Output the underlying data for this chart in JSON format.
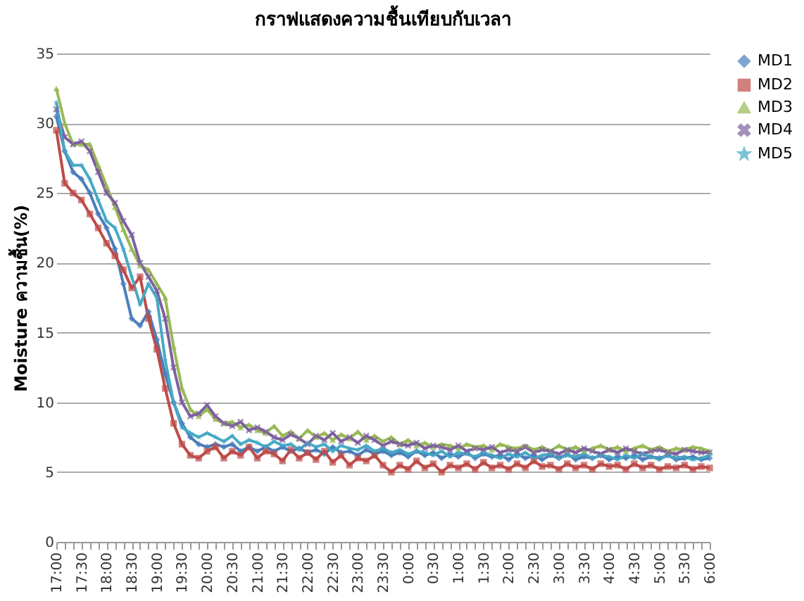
{
  "chart_data": {
    "type": "line",
    "title": "กราฟแสดงความชื้นเทียบกับเวลา",
    "ylabel": "Moisture ความชื้น(%)",
    "categories": [
      "17:00",
      null,
      null,
      "17:30",
      null,
      null,
      "18:00",
      null,
      null,
      "18:30",
      null,
      null,
      "19:00",
      null,
      null,
      "19:30",
      null,
      null,
      "20:00",
      null,
      null,
      "20:30",
      null,
      null,
      "21:00",
      null,
      null,
      "21:30",
      null,
      null,
      "22:00",
      null,
      null,
      "22:30",
      null,
      null,
      "23:00",
      null,
      null,
      "23:30",
      null,
      null,
      "0:00",
      null,
      null,
      "0:30",
      null,
      null,
      "1:00",
      null,
      null,
      "1:30",
      null,
      null,
      "2:00",
      null,
      null,
      "2:30",
      null,
      null,
      "3:00",
      null,
      null,
      "3:30",
      null,
      null,
      "4:00",
      null,
      null,
      "4:30",
      null,
      null,
      "5:00",
      null,
      null,
      "5:30",
      null,
      null,
      "6:00"
    ],
    "series": [
      {
        "name": "MD1",
        "color": "#4a7ebb",
        "marker": "diamond",
        "values": [
          30.5,
          28,
          26.5,
          26,
          25,
          23.5,
          22.5,
          21,
          18.5,
          16,
          15.5,
          16.5,
          14.5,
          12,
          10,
          8.5,
          7.5,
          7,
          6.8,
          7,
          6.8,
          7,
          6.5,
          6.8,
          6.5,
          6.8,
          6.5,
          6.8,
          6.5,
          6.7,
          6.4,
          6.6,
          6.3,
          6.8,
          6.4,
          6.5,
          6.2,
          6.6,
          6.3,
          6.5,
          6.2,
          6.4,
          6.1,
          6.5,
          6.2,
          6.4,
          6,
          6.3,
          6.1,
          6.4,
          6,
          6.3,
          6.1,
          6.2,
          5.9,
          6.3,
          6,
          6.2,
          5.9,
          6.2,
          6,
          6.3,
          5.9,
          6.1,
          6,
          6.2,
          5.9,
          6.1,
          6,
          6.2,
          5.9,
          6.1,
          6,
          6.2,
          5.9,
          6,
          6.1,
          5.9,
          6
        ]
      },
      {
        "name": "MD2",
        "color": "#be4b48",
        "marker": "square",
        "values": [
          29.5,
          25.7,
          25,
          24.5,
          23.5,
          22.5,
          21.4,
          20.5,
          19.5,
          18.2,
          19,
          16,
          13.8,
          11,
          8.5,
          7,
          6.2,
          6,
          6.5,
          6.8,
          6,
          6.5,
          6.2,
          6.8,
          6,
          6.5,
          6.3,
          5.8,
          6.6,
          6,
          6.4,
          5.9,
          6.5,
          5.7,
          6.2,
          5.5,
          6,
          5.8,
          6.2,
          5.5,
          5,
          5.5,
          5.2,
          5.8,
          5.3,
          5.6,
          5,
          5.5,
          5.3,
          5.6,
          5.2,
          5.7,
          5.3,
          5.5,
          5.2,
          5.6,
          5.3,
          5.8,
          5.4,
          5.5,
          5.2,
          5.6,
          5.3,
          5.5,
          5.2,
          5.6,
          5.4,
          5.5,
          5.2,
          5.6,
          5.3,
          5.5,
          5.2,
          5.4,
          5.3,
          5.5,
          5.2,
          5.4,
          5.3
        ]
      },
      {
        "name": "MD3",
        "color": "#98b954",
        "marker": "triangle",
        "values": [
          32.5,
          30,
          28.5,
          28.5,
          28.5,
          27,
          25.5,
          24,
          22.4,
          21,
          19.8,
          19.5,
          18.5,
          17.5,
          14,
          11,
          9.5,
          9,
          9.5,
          8.8,
          8.5,
          8.6,
          8.2,
          8.4,
          8,
          7.8,
          8.3,
          7.6,
          7.9,
          7.4,
          8,
          7.5,
          7.8,
          7.3,
          7.7,
          7.4,
          7.9,
          7.3,
          7.6,
          7.2,
          7.5,
          7,
          7.3,
          6.9,
          7.1,
          6.8,
          7,
          6.9,
          6.7,
          7,
          6.8,
          6.9,
          6.6,
          7,
          6.8,
          6.7,
          6.9,
          6.6,
          6.8,
          6.5,
          6.9,
          6.6,
          6.8,
          6.5,
          6.7,
          6.9,
          6.6,
          6.8,
          6.5,
          6.7,
          6.9,
          6.6,
          6.8,
          6.5,
          6.7,
          6.6,
          6.8,
          6.7,
          6.5
        ]
      },
      {
        "name": "MD4",
        "color": "#7d60a0",
        "marker": "cross",
        "values": [
          31,
          29,
          28.5,
          28.7,
          28,
          26.5,
          25,
          24.3,
          23,
          22,
          20,
          19,
          18,
          16,
          12.5,
          10,
          9,
          9.2,
          9.8,
          9,
          8.5,
          8.3,
          8.6,
          8,
          8.2,
          7.9,
          7.5,
          7.3,
          7.7,
          7.4,
          7,
          7.6,
          7.3,
          7.8,
          7.2,
          7.5,
          7.1,
          7.6,
          7.3,
          6.9,
          7.2,
          7,
          6.9,
          7.1,
          6.7,
          6.9,
          6.8,
          6.6,
          6.9,
          6.5,
          6.7,
          6.6,
          6.8,
          6.4,
          6.6,
          6.5,
          6.8,
          6.4,
          6.6,
          6.5,
          6.3,
          6.6,
          6.4,
          6.7,
          6.5,
          6.3,
          6.6,
          6.4,
          6.7,
          6.5,
          6.3,
          6.5,
          6.6,
          6.4,
          6.3,
          6.6,
          6.5,
          6.4,
          6.4
        ]
      },
      {
        "name": "MD5",
        "color": "#46aac5",
        "marker": "star",
        "values": [
          31.5,
          28,
          27,
          27,
          26,
          24.5,
          23,
          22.5,
          21,
          19,
          17,
          18.5,
          17.5,
          13,
          10,
          8.2,
          7.8,
          7.5,
          7.8,
          7.5,
          7.2,
          7.6,
          7,
          7.3,
          7.1,
          6.8,
          7.2,
          6.9,
          7,
          6.6,
          7.1,
          6.8,
          7,
          6.5,
          6.9,
          6.7,
          6.6,
          6.9,
          6.5,
          6.7,
          6.4,
          6.6,
          6.3,
          6.5,
          6.4,
          6.2,
          6.5,
          6.1,
          6.4,
          6.3,
          6.1,
          6.4,
          6.2,
          6,
          6.3,
          6.1,
          6.4,
          6,
          6.2,
          6.3,
          6,
          6.2,
          6.1,
          6.3,
          6,
          6.2,
          6.1,
          5.9,
          6.2,
          6,
          6.3,
          6.1,
          5.9,
          6.2,
          6,
          6.1,
          5.9,
          6,
          6.2
        ]
      }
    ],
    "ylim": [
      0,
      35
    ],
    "yticks": [
      0,
      5,
      10,
      15,
      20,
      25,
      30,
      35
    ],
    "grid": "y",
    "legend": "right",
    "line_style": "solid"
  }
}
